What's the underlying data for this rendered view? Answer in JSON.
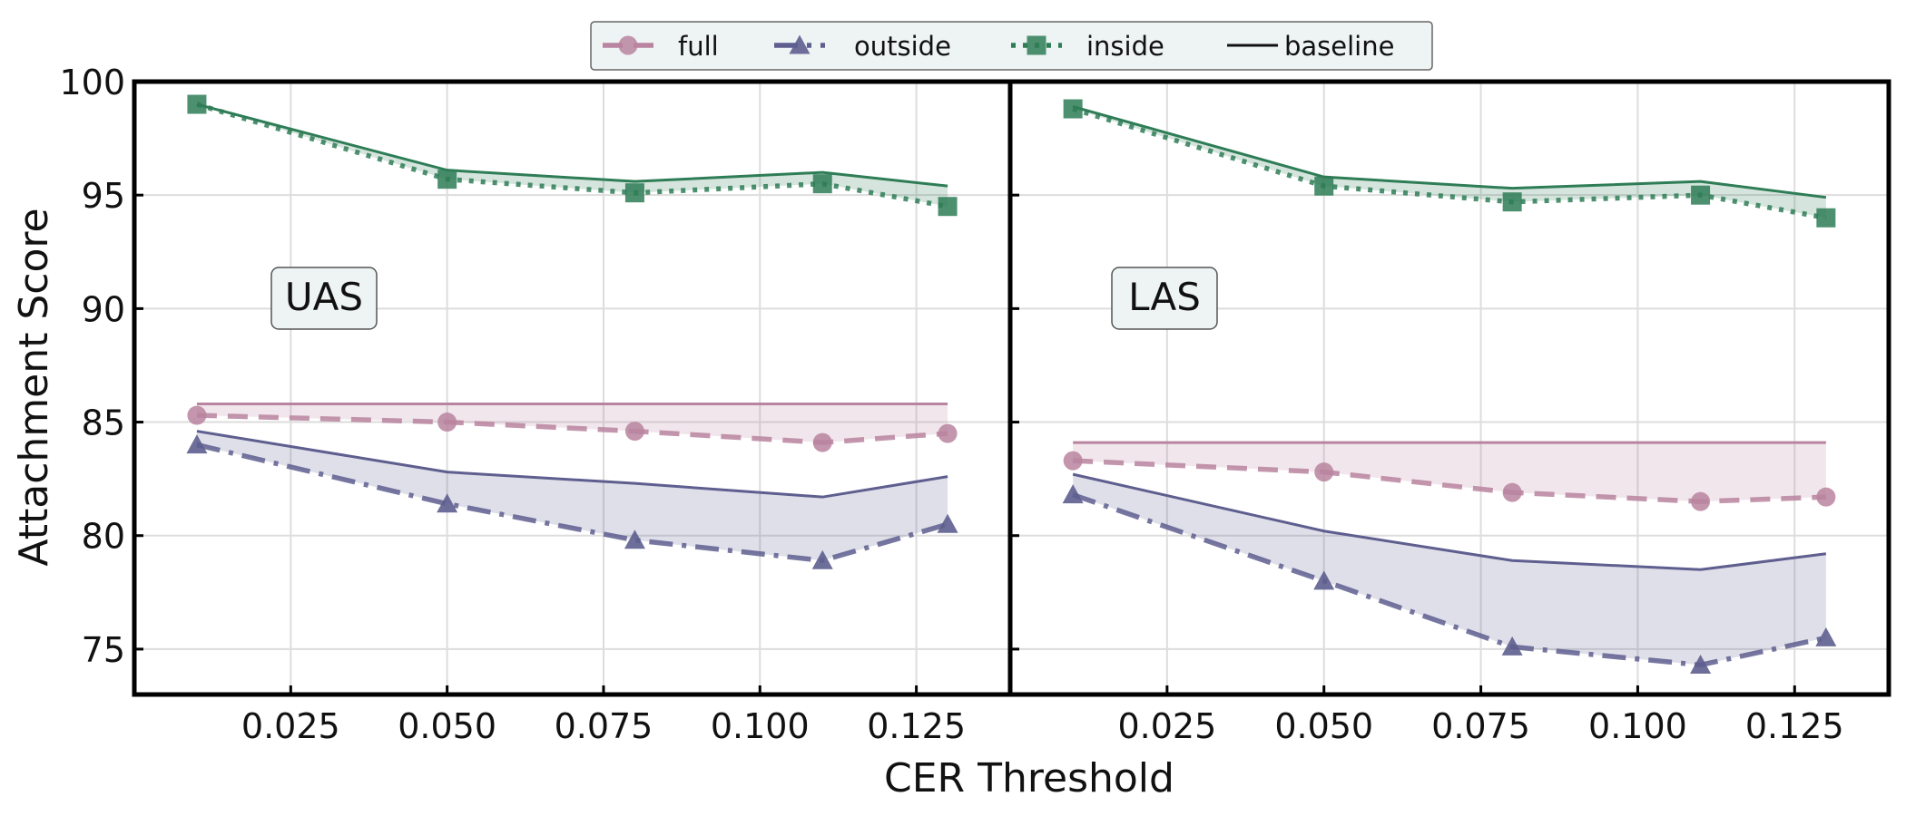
{
  "figure": {
    "ylabel": "Attachment Score",
    "xlabel": "CER Threshold"
  },
  "legend": {
    "placement": "top-center",
    "entries": [
      {
        "key": "full",
        "label": "full",
        "color": "#b9849f",
        "marker": "circle",
        "dash": "dashed"
      },
      {
        "key": "outside",
        "label": "outside",
        "color": "#5e5e8f",
        "marker": "triangle",
        "dash": "dashdot"
      },
      {
        "key": "inside",
        "label": "inside",
        "color": "#2e7d56",
        "marker": "square",
        "dash": "dotted"
      },
      {
        "key": "baseline",
        "label": "baseline",
        "color": "#111111",
        "marker": "none",
        "dash": "solid"
      }
    ]
  },
  "chart_data": [
    {
      "type": "line",
      "panel_label": "UAS",
      "x": [
        0.01,
        0.05,
        0.08,
        0.11,
        0.13
      ],
      "xticks": [
        "0.025",
        "0.050",
        "0.075",
        "0.100",
        "0.125"
      ],
      "xtick_values": [
        0.025,
        0.05,
        0.075,
        0.1,
        0.125
      ],
      "xlim": [
        0.0,
        0.14
      ],
      "ylim": [
        73,
        100
      ],
      "yticks": [
        75,
        80,
        85,
        90,
        95,
        100
      ],
      "grid": true,
      "series": [
        {
          "name": "full",
          "values": [
            85.3,
            85.0,
            84.6,
            84.1,
            84.5
          ],
          "baseline": [
            85.8,
            85.8,
            85.8,
            85.8,
            85.8
          ]
        },
        {
          "name": "outside",
          "values": [
            84.0,
            81.4,
            79.8,
            78.9,
            80.5
          ],
          "baseline": [
            84.6,
            82.8,
            82.3,
            81.7,
            82.6
          ]
        },
        {
          "name": "inside",
          "values": [
            99.0,
            95.7,
            95.1,
            95.5,
            94.5
          ],
          "baseline": [
            99.0,
            96.1,
            95.6,
            96.0,
            95.4
          ]
        }
      ]
    },
    {
      "type": "line",
      "panel_label": "LAS",
      "x": [
        0.01,
        0.05,
        0.08,
        0.11,
        0.13
      ],
      "xticks": [
        "0.025",
        "0.050",
        "0.075",
        "0.100",
        "0.125"
      ],
      "xtick_values": [
        0.025,
        0.05,
        0.075,
        0.1,
        0.125
      ],
      "xlim": [
        0.0,
        0.14
      ],
      "ylim": [
        73,
        100
      ],
      "yticks": [
        75,
        80,
        85,
        90,
        95,
        100
      ],
      "grid": true,
      "series": [
        {
          "name": "full",
          "values": [
            83.3,
            82.8,
            81.9,
            81.5,
            81.7
          ],
          "baseline": [
            84.1,
            84.1,
            84.1,
            84.1,
            84.1
          ]
        },
        {
          "name": "outside",
          "values": [
            81.8,
            78.0,
            75.1,
            74.3,
            75.5
          ],
          "baseline": [
            82.7,
            80.2,
            78.9,
            78.5,
            79.2
          ]
        },
        {
          "name": "inside",
          "values": [
            98.8,
            95.4,
            94.7,
            95.0,
            94.0
          ],
          "baseline": [
            98.9,
            95.8,
            95.3,
            95.6,
            94.9
          ]
        }
      ]
    }
  ]
}
